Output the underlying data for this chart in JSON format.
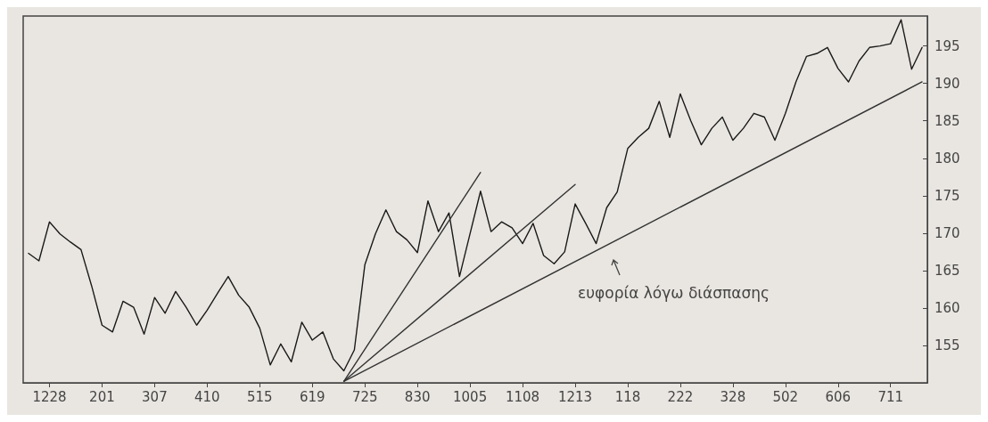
{
  "chart_data": {
    "type": "line",
    "categories": [
      null,
      null,
      "1228",
      null,
      null,
      null,
      null,
      "201",
      null,
      null,
      null,
      null,
      "307",
      null,
      null,
      null,
      null,
      "410",
      null,
      null,
      null,
      null,
      "515",
      null,
      null,
      null,
      null,
      "619",
      null,
      null,
      null,
      null,
      "725",
      null,
      null,
      null,
      null,
      "830",
      null,
      null,
      null,
      null,
      "1005",
      null,
      null,
      null,
      null,
      "1108",
      null,
      null,
      null,
      null,
      "1213",
      null,
      null,
      null,
      null,
      "118",
      null,
      null,
      null,
      null,
      "222",
      null,
      null,
      null,
      null,
      "328",
      null,
      null,
      null,
      null,
      "502",
      null,
      null,
      null,
      null,
      "606",
      null,
      null,
      null,
      null,
      "711",
      null,
      null,
      null
    ],
    "series": [
      {
        "color": "#1a1a1a",
        "values": [
          167.3,
          166.3,
          171.5,
          169.9,
          168.8,
          167.8,
          163.0,
          157.7,
          156.8,
          160.9,
          160.1,
          156.5,
          161.4,
          159.3,
          162.2,
          160.1,
          157.7,
          159.7,
          162.0,
          164.2,
          161.7,
          160.1,
          157.3,
          152.4,
          155.2,
          152.8,
          158.1,
          155.7,
          156.8,
          153.2,
          151.6,
          154.4,
          165.8,
          169.9,
          173.1,
          170.2,
          169.1,
          167.4,
          174.3,
          170.2,
          172.7,
          164.2,
          169.9,
          175.6,
          170.2,
          171.5,
          170.7,
          168.6,
          171.3,
          167.0,
          165.9,
          167.5,
          173.9,
          171.3,
          168.6,
          173.4,
          175.5,
          181.3,
          182.8,
          184.0,
          187.6,
          182.8,
          188.6,
          185.0,
          181.8,
          184.0,
          185.5,
          182.4,
          184.0,
          186.0,
          185.5,
          182.4,
          186.0,
          190.2,
          193.6,
          194.0,
          194.8,
          192.0,
          190.2,
          193.0,
          194.8,
          195.0,
          195.3,
          198.5,
          191.9,
          194.8
        ]
      },
      {
        "color": "#333333",
        "values": [
          null,
          null,
          null,
          null,
          null,
          null,
          null,
          null,
          null,
          null,
          null,
          null,
          null,
          null,
          null,
          null,
          null,
          null,
          null,
          null,
          null,
          null,
          null,
          null,
          null,
          null,
          null,
          null,
          null,
          null,
          150.2,
          null,
          null,
          null,
          null,
          null,
          null,
          null,
          null,
          null,
          null,
          null,
          null,
          178.1,
          null,
          null,
          null,
          null,
          null,
          null,
          null,
          null,
          null,
          null,
          null,
          null,
          null,
          null,
          null,
          null,
          null,
          null,
          null,
          null,
          null,
          null,
          null,
          null,
          null,
          null,
          null,
          null,
          null,
          null,
          null,
          null,
          null,
          null,
          null,
          null,
          null,
          null,
          null,
          null,
          null,
          null
        ]
      },
      {
        "color": "#333333",
        "values": [
          null,
          null,
          null,
          null,
          null,
          null,
          null,
          null,
          null,
          null,
          null,
          null,
          null,
          null,
          null,
          null,
          null,
          null,
          null,
          null,
          null,
          null,
          null,
          null,
          null,
          null,
          null,
          null,
          null,
          null,
          150.2,
          null,
          null,
          null,
          null,
          null,
          null,
          null,
          null,
          null,
          null,
          null,
          null,
          null,
          null,
          null,
          null,
          null,
          null,
          null,
          null,
          null,
          176.5,
          null,
          null,
          null,
          null,
          null,
          null,
          null,
          null,
          null,
          null,
          null,
          null,
          null,
          null,
          null,
          null,
          null,
          null,
          null,
          null,
          null,
          null,
          null,
          null,
          null,
          null,
          null,
          null,
          null,
          null,
          null,
          null,
          null
        ]
      },
      {
        "color": "#333333",
        "values": [
          null,
          null,
          null,
          null,
          null,
          null,
          null,
          null,
          null,
          null,
          null,
          null,
          null,
          null,
          null,
          null,
          null,
          null,
          null,
          null,
          null,
          null,
          null,
          null,
          null,
          null,
          null,
          null,
          null,
          null,
          150.2,
          null,
          null,
          null,
          null,
          null,
          null,
          null,
          null,
          null,
          null,
          null,
          null,
          null,
          null,
          null,
          null,
          null,
          null,
          null,
          null,
          null,
          null,
          null,
          null,
          null,
          null,
          null,
          null,
          null,
          null,
          null,
          null,
          null,
          null,
          null,
          null,
          null,
          null,
          null,
          null,
          null,
          null,
          null,
          null,
          null,
          null,
          null,
          null,
          null,
          null,
          null,
          null,
          null,
          null,
          190.2
        ]
      }
    ],
    "ylim": [
      150,
      199
    ],
    "yticks": [
      155,
      160,
      165,
      170,
      175,
      180,
      185,
      190,
      195
    ],
    "annotations": [
      "ευφορία λόγω διάσπασης"
    ],
    "grid": false,
    "marker": "none",
    "line_style": "solid"
  }
}
